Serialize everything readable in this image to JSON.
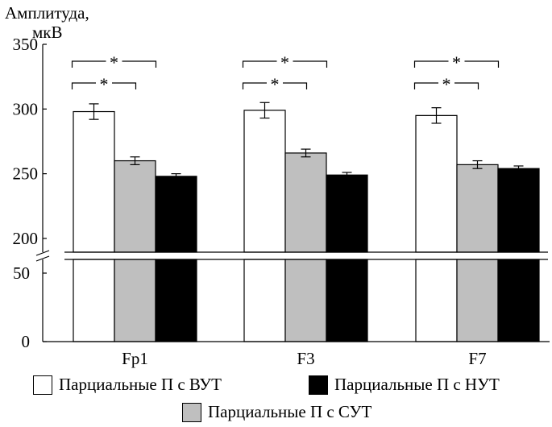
{
  "chart_data": {
    "type": "bar",
    "ylabel": "Амплитуда,",
    "yunit": "мкВ",
    "categories": [
      "Fp1",
      "F3",
      "F7"
    ],
    "series": [
      {
        "name": "Парциальные П с ВУТ",
        "color": "#ffffff",
        "values": [
          298,
          299,
          295
        ],
        "errors": [
          6,
          6,
          6
        ]
      },
      {
        "name": "Парциальные П с СУТ",
        "color": "#bfbfbf",
        "values": [
          260,
          266,
          257
        ],
        "errors": [
          3,
          3,
          3
        ]
      },
      {
        "name": "Парциальные П с НУТ",
        "color": "#000000",
        "values": [
          248,
          249,
          254
        ],
        "errors": [
          2,
          2,
          2
        ]
      }
    ],
    "upper_axis": {
      "range": [
        190,
        350
      ],
      "ticks": [
        "200",
        "250",
        "300",
        "350"
      ]
    },
    "lower_axis": {
      "range": [
        0,
        60
      ],
      "ticks": [
        "0",
        "50"
      ]
    },
    "significance_marker": "*"
  },
  "legend": {
    "vut": "Парциальные П с ВУТ",
    "nut": "Парциальные П с НУТ",
    "sut": "Парциальные П с СУТ"
  }
}
